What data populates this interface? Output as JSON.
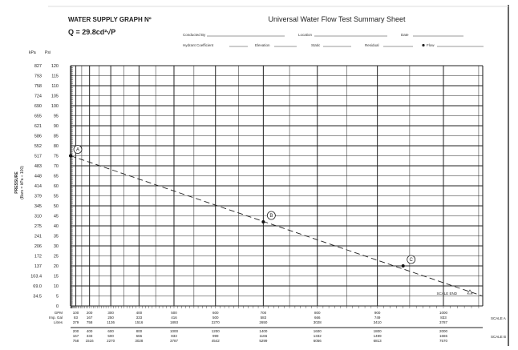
{
  "header": {
    "title": "WATER SUPPLY GRAPH Nº",
    "formula": "Q = 29.8cd²√P",
    "sheet_title": "Universal Water Flow Test Summary Sheet",
    "fields": {
      "conducted_by": "Conducted By",
      "location": "Location",
      "date": "Date",
      "hydrant_coefficient": "Hydrant Coefficient",
      "elevation": "Elevation",
      "static": "Static",
      "residual": "Residual",
      "flow": "Flow"
    }
  },
  "chart_data": {
    "type": "line",
    "title": "",
    "xscale": "Q^1.85",
    "ylabel": "PRESSURE",
    "ylabel_sub": "(Bars = kPa ÷ 100)",
    "y_units": [
      "kPa",
      "Psi"
    ],
    "ylim": [
      0,
      120
    ],
    "y_ticks_psi": [
      "120",
      "115",
      "110",
      "105",
      "100",
      "95",
      "90",
      "85",
      "80",
      "75",
      "70",
      "65",
      "60",
      "55",
      "50",
      "45",
      "40",
      "35",
      "30",
      "25",
      "20",
      "15",
      "10",
      "5",
      "0"
    ],
    "y_ticks_kpa": [
      "827",
      "793",
      "758",
      "724",
      "690",
      "655",
      "621",
      "586",
      "552",
      "517",
      "483",
      "448",
      "414",
      "379",
      "345",
      "310",
      "275",
      "241",
      "206",
      "172",
      "137",
      "103.4",
      "69.0",
      "34.5",
      ""
    ],
    "grid": true,
    "scale_a": {
      "label": "SCALE A",
      "row_labels": [
        "GPM",
        "Imp. Gal",
        "Litres"
      ],
      "gpm": [
        100,
        200,
        300,
        400,
        500,
        600,
        700,
        800,
        900,
        1000
      ],
      "imp_gal": [
        "83",
        "167",
        "250",
        "333",
        "416",
        "500",
        "583",
        "666",
        "749",
        "833"
      ],
      "litres": [
        "379",
        "758",
        "1136",
        "1516",
        "1893",
        "2270",
        "2650",
        "3028",
        "3410",
        "3787"
      ]
    },
    "scale_b": {
      "label": "SCALE B",
      "gpm": [
        "200",
        "400",
        "600",
        "800",
        "1000",
        "1200",
        "1400",
        "1600",
        "1800",
        "2000"
      ],
      "imp_gal": [
        "167",
        "333",
        "500",
        "666",
        "833",
        "999",
        "1166",
        "1332",
        "1499",
        "1665"
      ],
      "litres": [
        "758",
        "1516",
        "2270",
        "3028",
        "3787",
        "4542",
        "5299",
        "6056",
        "6813",
        "7570"
      ]
    },
    "points": [
      {
        "label": "A",
        "gpm": 0,
        "psi": 75
      },
      {
        "label": "B",
        "gpm": 700,
        "psi": 42
      },
      {
        "label": "C",
        "gpm": 940,
        "psi": 20
      }
    ],
    "line": {
      "from": {
        "gpm": 0,
        "psi": 75
      },
      "to": {
        "gpm": 1055,
        "psi": 5
      },
      "style": "dashed"
    },
    "scale_end_label": "SCALE END"
  }
}
